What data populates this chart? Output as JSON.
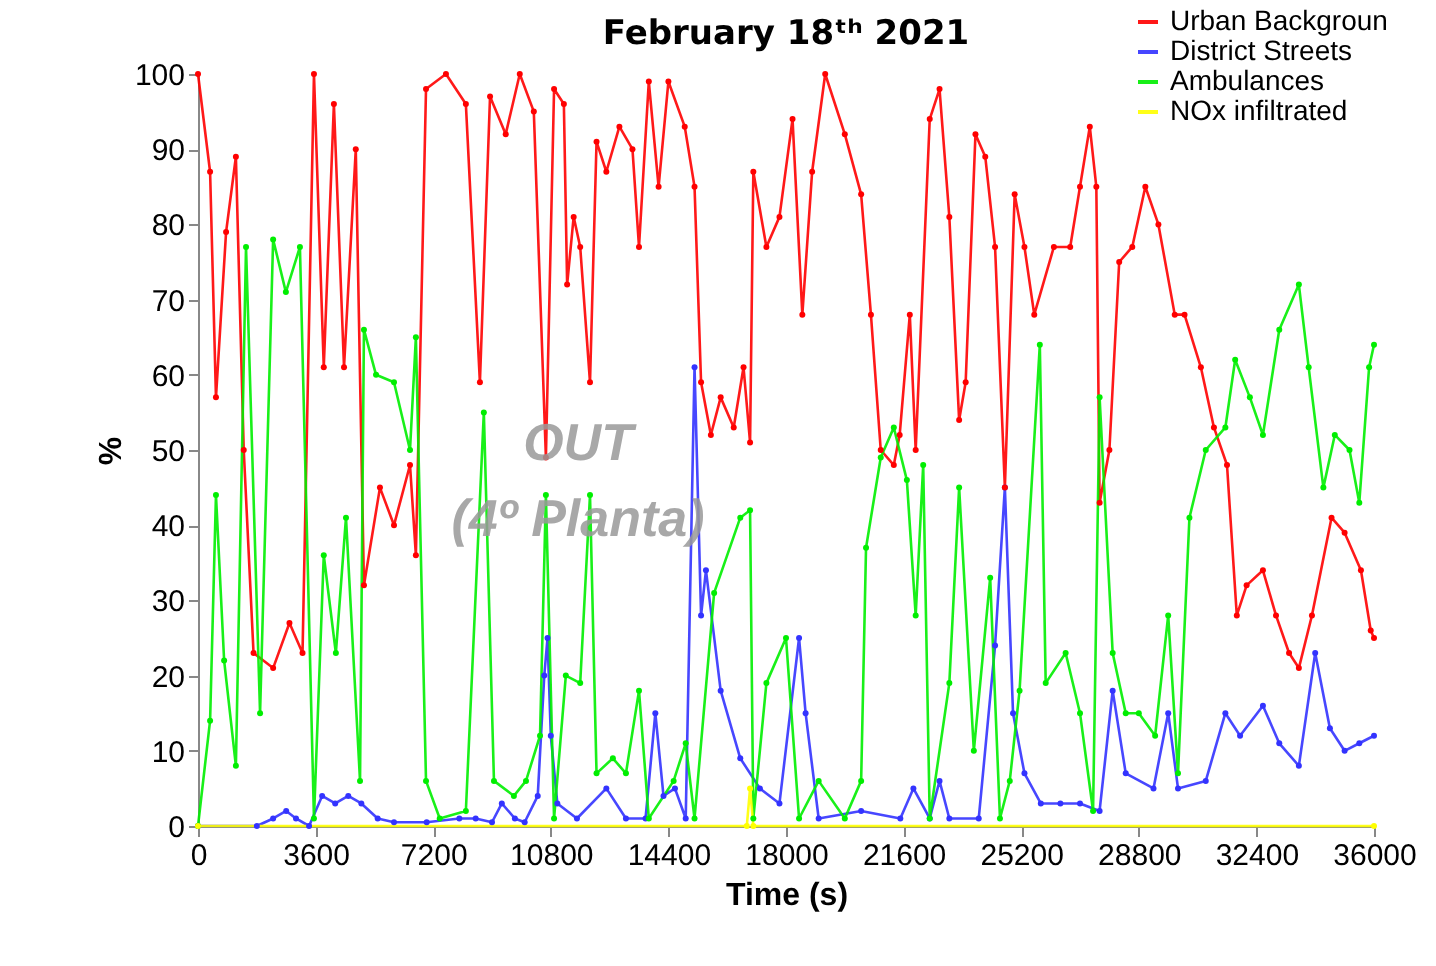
{
  "chart_data": {
    "type": "line",
    "title": "February 18ᵗʰ 2021",
    "xlabel": "Time (s)",
    "ylabel": "%",
    "xlim": [
      0,
      36000
    ],
    "xticks": [
      0,
      3600,
      7200,
      10800,
      14400,
      18000,
      21600,
      25200,
      28800,
      32400,
      36000
    ],
    "ylim": [
      0,
      100
    ],
    "yticks": [
      0,
      10,
      20,
      30,
      40,
      50,
      60,
      70,
      80,
      90,
      100
    ],
    "grid": false,
    "legend": "top right",
    "marker": "circle",
    "line_style": "solid",
    "annotations": [
      "OUT",
      "(4º Planta)"
    ],
    "series": [
      {
        "name": "Urban Backgroun",
        "color": "#ff0000",
        "x": [
          0,
          370,
          550,
          860,
          1160,
          1400,
          1700,
          2300,
          2800,
          3200,
          3550,
          3850,
          4160,
          4470,
          4830,
          5080,
          5570,
          6000,
          6490,
          6670,
          6980,
          7590,
          8200,
          8630,
          8940,
          9420,
          9850,
          10280,
          10650,
          10900,
          11200,
          11300,
          11500,
          11700,
          12000,
          12200,
          12500,
          12900,
          13300,
          13500,
          13800,
          14100,
          14400,
          14900,
          15200,
          15400,
          15700,
          16000,
          16400,
          16700,
          16900,
          17000,
          17400,
          17800,
          18200,
          18500,
          18800,
          19200,
          19800,
          20300,
          20600,
          20900,
          21300,
          21480,
          21790,
          21970,
          22400,
          22700,
          23000,
          23300,
          23500,
          23800,
          24100,
          24400,
          24700,
          25000,
          25300,
          25600,
          26200,
          26700,
          27000,
          27300,
          27500,
          27600,
          27900,
          28200,
          28600,
          29000,
          29400,
          29900,
          30200,
          30700,
          31100,
          31500,
          31800,
          32100,
          32600,
          33000,
          33400,
          33700,
          34100,
          34700,
          35100,
          35600,
          35900,
          36000
        ],
        "values": [
          100,
          87,
          57,
          79,
          89,
          50,
          23,
          21,
          27,
          23,
          100,
          61,
          96,
          61,
          90,
          32,
          45,
          40,
          48,
          36,
          98,
          100,
          96,
          59,
          97,
          92,
          100,
          95,
          49,
          98,
          96,
          72,
          81,
          77,
          59,
          91,
          87,
          93,
          90,
          77,
          99,
          85,
          99,
          93,
          85,
          59,
          52,
          57,
          53,
          61,
          51,
          87,
          77,
          81,
          94,
          68,
          87,
          100,
          92,
          84,
          68,
          50,
          48,
          52,
          68,
          50,
          94,
          98,
          81,
          54,
          59,
          92,
          89,
          77,
          45,
          84,
          77,
          68,
          77,
          77,
          85,
          93,
          85,
          43,
          50,
          75,
          77,
          85,
          80,
          68,
          68,
          61,
          53,
          48,
          28,
          32,
          34,
          28,
          23,
          21,
          28,
          41,
          39,
          34,
          26,
          25
        ]
      },
      {
        "name": "District Streets",
        "color": "#3333ff",
        "x": [
          0,
          1800,
          2300,
          2700,
          3000,
          3400,
          3800,
          4200,
          4600,
          5000,
          5500,
          6000,
          7000,
          8000,
          8500,
          9000,
          9300,
          9700,
          10000,
          10400,
          10600,
          10700,
          10800,
          11000,
          11600,
          12500,
          13100,
          13700,
          14000,
          14250,
          14600,
          14930,
          15200,
          15400,
          15550,
          16000,
          16600,
          17200,
          17800,
          18400,
          18600,
          19000,
          20300,
          21500,
          21900,
          22400,
          22700,
          23000,
          23900,
          24400,
          24700,
          24950,
          25300,
          25800,
          26400,
          27000,
          27600,
          28000,
          28400,
          29250,
          29700,
          30000,
          30850,
          31450,
          31900,
          32600,
          33100,
          33700,
          34200,
          34650,
          35100,
          35550,
          36000
        ],
        "values": [
          0,
          0,
          1,
          2,
          1,
          0,
          4,
          3,
          4,
          3,
          1,
          0.5,
          0.5,
          1,
          1,
          0.5,
          3,
          1,
          0.5,
          4,
          20,
          25,
          12,
          3,
          1,
          5,
          1,
          1,
          15,
          4,
          5,
          1,
          61,
          28,
          34,
          18,
          9,
          5,
          3,
          25,
          15,
          1,
          2,
          1,
          5,
          1,
          6,
          1,
          1,
          24,
          45,
          15,
          7,
          3,
          3,
          3,
          2,
          18,
          7,
          5,
          15,
          5,
          6,
          15,
          12,
          16,
          11,
          8,
          23,
          13,
          10,
          11,
          12
        ]
      },
      {
        "name": "Ambulances",
        "color": "#00ee00",
        "x": [
          0,
          370,
          550,
          800,
          1160,
          1470,
          1900,
          2300,
          2690,
          3120,
          3550,
          3850,
          4220,
          4530,
          4960,
          5080,
          5450,
          6000,
          6490,
          6670,
          6980,
          7400,
          8200,
          8750,
          9060,
          9670,
          10040,
          10470,
          10650,
          10900,
          11260,
          11700,
          12000,
          12200,
          12700,
          13100,
          13500,
          13800,
          14560,
          14930,
          15200,
          15800,
          16600,
          16900,
          17000,
          17400,
          18000,
          18400,
          19000,
          19800,
          20300,
          20450,
          20900,
          21300,
          21700,
          21970,
          22200,
          22400,
          23000,
          23300,
          23750,
          24250,
          24550,
          24850,
          25150,
          25770,
          25950,
          26560,
          27000,
          27400,
          27600,
          28000,
          28400,
          28800,
          29300,
          29700,
          30000,
          30350,
          30850,
          31450,
          31750,
          32200,
          32600,
          33100,
          33700,
          34000,
          34450,
          34800,
          35250,
          35550,
          35850,
          36000
        ],
        "values": [
          0,
          14,
          44,
          22,
          8,
          77,
          15,
          78,
          71,
          77,
          1,
          36,
          23,
          41,
          6,
          66,
          60,
          59,
          50,
          65,
          6,
          1,
          2,
          55,
          6,
          4,
          6,
          12,
          44,
          1,
          20,
          19,
          44,
          7,
          9,
          7,
          18,
          1,
          6,
          11,
          1,
          31,
          41,
          42,
          1,
          19,
          25,
          1,
          6,
          1,
          6,
          37,
          49,
          53,
          46,
          28,
          48,
          1,
          19,
          45,
          10,
          33,
          1,
          6,
          18,
          64,
          19,
          23,
          15,
          2,
          57,
          23,
          15,
          15,
          12,
          28,
          7,
          41,
          50,
          53,
          62,
          57,
          52,
          66,
          72,
          61,
          45,
          52,
          50,
          43,
          61,
          64
        ]
      },
      {
        "name": "NOx infiltrated",
        "color": "#ffff00",
        "x": [
          0,
          16800,
          16900,
          17000,
          36000
        ],
        "values": [
          0,
          0,
          5,
          0,
          0
        ]
      }
    ]
  }
}
